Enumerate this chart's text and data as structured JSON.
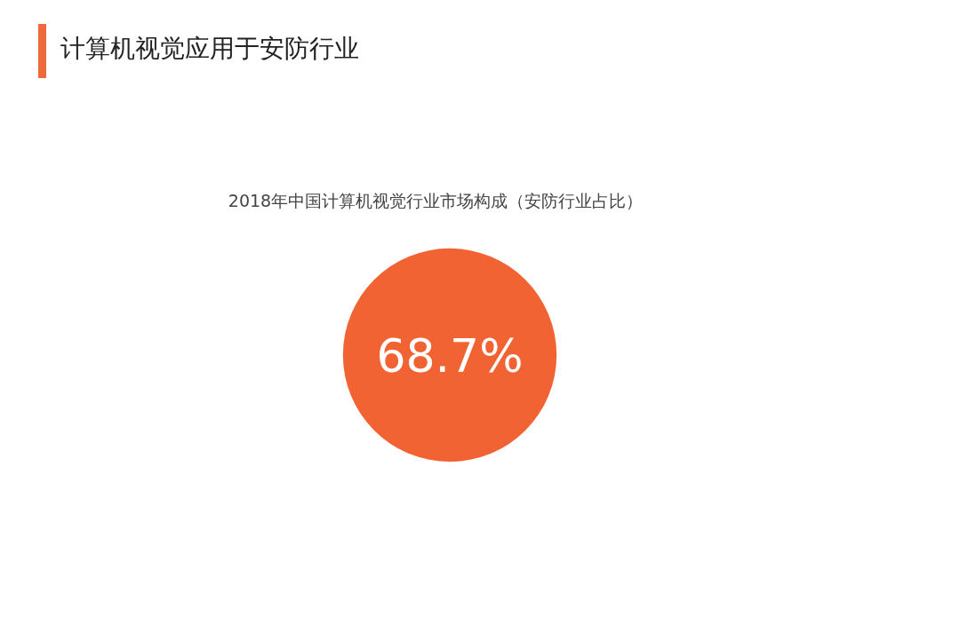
{
  "chart_data": {
    "type": "other",
    "title": "计算机视觉应用于安防行业",
    "subtitle": "2018年中国计算机视觉行业市场构成（安防行业占比）",
    "values": [
      68.7
    ],
    "value_labels": [
      "68.7%"
    ],
    "colors": [
      "#f26334"
    ]
  }
}
